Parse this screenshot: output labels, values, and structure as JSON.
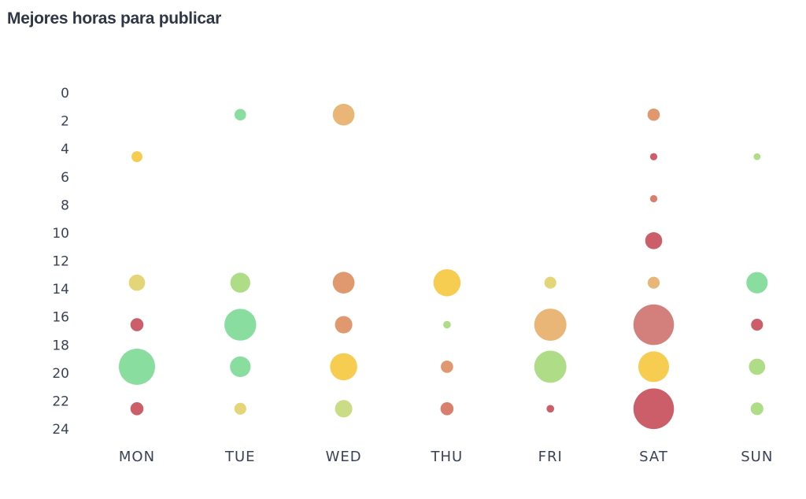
{
  "chart_data": {
    "type": "scatter",
    "title": "Mejores horas para publicar",
    "xlabel": "",
    "ylabel": "",
    "categories": [
      "MON",
      "TUE",
      "WED",
      "THU",
      "FRI",
      "SAT",
      "SUN"
    ],
    "y_ticks": [
      0,
      2,
      4,
      6,
      8,
      10,
      12,
      14,
      16,
      18,
      20,
      22,
      24
    ],
    "ylim": [
      0,
      24
    ],
    "y_reversed": true,
    "grid": false,
    "encoding": "bubble size = relative weight; color scale green to red",
    "points": [
      {
        "day": "MON",
        "hour": 4.5,
        "size": 0.3,
        "color": "#f5c842"
      },
      {
        "day": "MON",
        "hour": 13.5,
        "size": 0.45,
        "color": "#e2d36c"
      },
      {
        "day": "MON",
        "hour": 16.5,
        "size": 0.36,
        "color": "#c7505c"
      },
      {
        "day": "MON",
        "hour": 19.5,
        "size": 1.0,
        "color": "#7fdb97"
      },
      {
        "day": "MON",
        "hour": 22.5,
        "size": 0.36,
        "color": "#c7505c"
      },
      {
        "day": "TUE",
        "hour": 1.5,
        "size": 0.32,
        "color": "#7fdb97"
      },
      {
        "day": "TUE",
        "hour": 13.5,
        "size": 0.55,
        "color": "#a7d97d"
      },
      {
        "day": "TUE",
        "hour": 16.5,
        "size": 0.88,
        "color": "#7fdb97"
      },
      {
        "day": "TUE",
        "hour": 19.5,
        "size": 0.57,
        "color": "#7fdb97"
      },
      {
        "day": "TUE",
        "hour": 22.5,
        "size": 0.33,
        "color": "#e2d36c"
      },
      {
        "day": "WED",
        "hour": 1.5,
        "size": 0.6,
        "color": "#e8b06c"
      },
      {
        "day": "WED",
        "hour": 13.5,
        "size": 0.6,
        "color": "#dd8f62"
      },
      {
        "day": "WED",
        "hour": 16.5,
        "size": 0.48,
        "color": "#dd8f62"
      },
      {
        "day": "WED",
        "hour": 19.5,
        "size": 0.75,
        "color": "#f5c842"
      },
      {
        "day": "WED",
        "hour": 22.5,
        "size": 0.48,
        "color": "#c6d97c"
      },
      {
        "day": "THU",
        "hour": 13.5,
        "size": 0.75,
        "color": "#f5c842"
      },
      {
        "day": "THU",
        "hour": 16.5,
        "size": 0.21,
        "color": "#a7d97d"
      },
      {
        "day": "THU",
        "hour": 19.5,
        "size": 0.34,
        "color": "#dd8f62"
      },
      {
        "day": "THU",
        "hour": 22.5,
        "size": 0.36,
        "color": "#d6745e"
      },
      {
        "day": "FRI",
        "hour": 13.5,
        "size": 0.33,
        "color": "#e2d36c"
      },
      {
        "day": "FRI",
        "hour": 16.5,
        "size": 0.89,
        "color": "#e8b06c"
      },
      {
        "day": "FRI",
        "hour": 19.5,
        "size": 0.89,
        "color": "#a7d97d"
      },
      {
        "day": "FRI",
        "hour": 22.5,
        "size": 0.21,
        "color": "#c7505c"
      },
      {
        "day": "SAT",
        "hour": 1.5,
        "size": 0.34,
        "color": "#dd8f62"
      },
      {
        "day": "SAT",
        "hour": 4.5,
        "size": 0.2,
        "color": "#c7505c"
      },
      {
        "day": "SAT",
        "hour": 7.5,
        "size": 0.2,
        "color": "#d6745e"
      },
      {
        "day": "SAT",
        "hour": 10.5,
        "size": 0.47,
        "color": "#c7505c"
      },
      {
        "day": "SAT",
        "hour": 13.5,
        "size": 0.33,
        "color": "#e8b06c"
      },
      {
        "day": "SAT",
        "hour": 16.5,
        "size": 1.12,
        "color": "#cf7470"
      },
      {
        "day": "SAT",
        "hour": 19.5,
        "size": 0.85,
        "color": "#f5c842"
      },
      {
        "day": "SAT",
        "hour": 22.5,
        "size": 1.12,
        "color": "#c7505c"
      },
      {
        "day": "SUN",
        "hour": 4.5,
        "size": 0.19,
        "color": "#a7d97d"
      },
      {
        "day": "SUN",
        "hour": 13.5,
        "size": 0.59,
        "color": "#7fdb97"
      },
      {
        "day": "SUN",
        "hour": 16.5,
        "size": 0.33,
        "color": "#c7505c"
      },
      {
        "day": "SUN",
        "hour": 19.5,
        "size": 0.45,
        "color": "#a7d97d"
      },
      {
        "day": "SUN",
        "hour": 22.5,
        "size": 0.35,
        "color": "#a7d97d"
      }
    ]
  }
}
